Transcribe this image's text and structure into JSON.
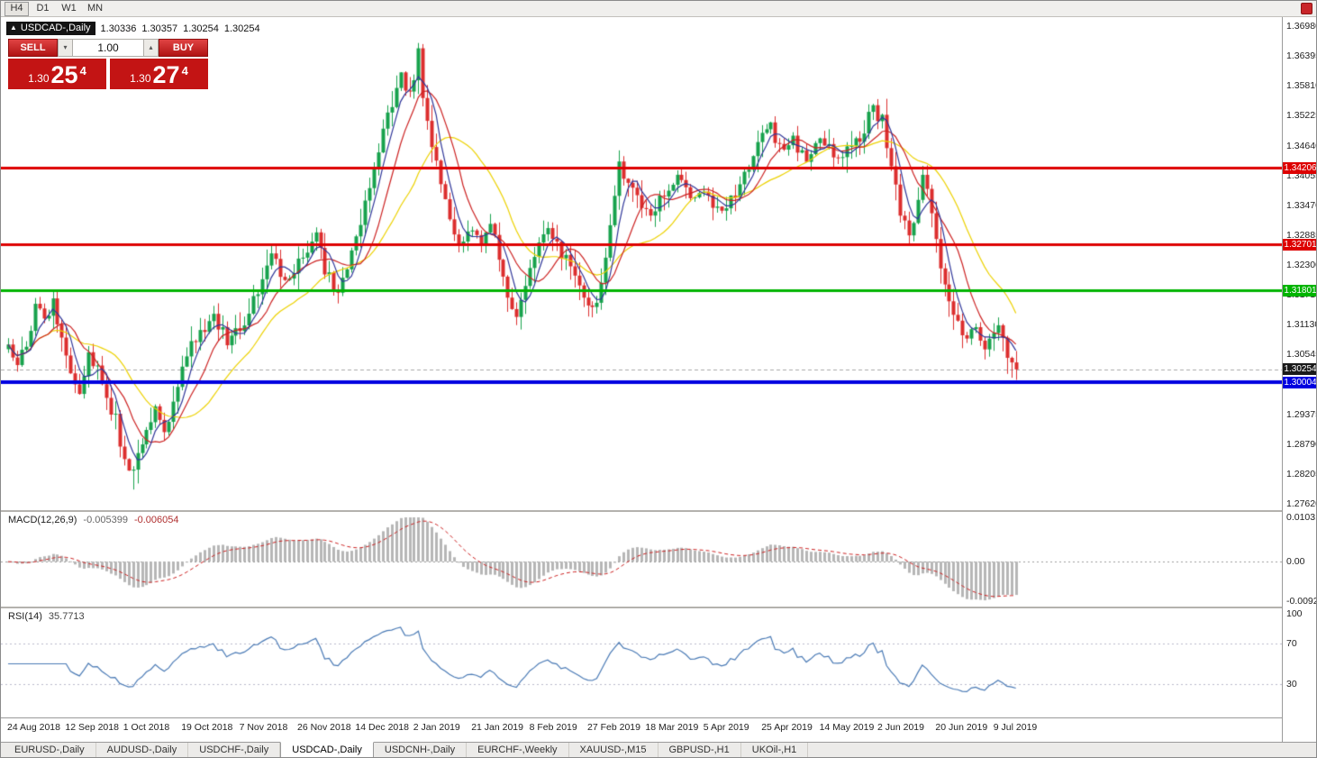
{
  "toolbar": {
    "timeframes": [
      {
        "label": "H4",
        "active": true
      },
      {
        "label": "D1",
        "active": false
      },
      {
        "label": "W1",
        "active": false
      },
      {
        "label": "MN",
        "active": false
      }
    ]
  },
  "chart_header": {
    "marker": "▲",
    "symbol": "USDCAD-,Daily",
    "open": "1.30336",
    "high": "1.30357",
    "low": "1.30254",
    "close": "1.30254"
  },
  "trade_panel": {
    "sell_label": "SELL",
    "buy_label": "BUY",
    "volume": "1.00",
    "spin_down_icon": "▾",
    "spin_up_icon": "▴",
    "sell_price": {
      "small": "1.30",
      "big": "25",
      "sup": "4"
    },
    "buy_price": {
      "small": "1.30",
      "big": "27",
      "sup": "4"
    }
  },
  "price_scale": {
    "ticks": [
      "1.36980",
      "1.36395",
      "1.35810",
      "1.35225",
      "1.34640",
      "1.34055",
      "1.33470",
      "1.32885",
      "1.32300",
      "1.31715",
      "1.31130",
      "1.30545",
      "1.29960",
      "1.29375",
      "1.28790",
      "1.28205",
      "1.27620"
    ],
    "top_price": 1.3698,
    "bottom_price": 1.2762
  },
  "price_labels": [
    {
      "text": "1.34206",
      "price": 1.34206,
      "color": "#dd0000"
    },
    {
      "text": "1.32701",
      "price": 1.32701,
      "color": "#dd0000"
    },
    {
      "text": "1.31801",
      "price": 1.31801,
      "color": "#00b400"
    },
    {
      "text": "1.30254",
      "price": 1.30254,
      "color": "#1a1a1a"
    },
    {
      "text": "1.30004",
      "price": 1.30004,
      "color": "#0000e0"
    }
  ],
  "macd_panel": {
    "title": "MACD(12,26,9)",
    "value_main": "-0.005399",
    "value_signal": "-0.006054",
    "scale_ticks": [
      {
        "text": "0.010311",
        "value": 0.010311
      },
      {
        "text": "0.00",
        "value": 0
      },
      {
        "text": "-0.009204",
        "value": -0.009204
      }
    ],
    "max": 0.010311,
    "min": -0.009204
  },
  "rsi_panel": {
    "title": "RSI(14)",
    "value": "35.7713",
    "scale_ticks": [
      {
        "text": "100",
        "value": 100
      },
      {
        "text": "70",
        "value": 70
      },
      {
        "text": "30",
        "value": 30
      }
    ],
    "levels": [
      70,
      30
    ],
    "max": 100,
    "min": 0
  },
  "x_axis": {
    "labels": [
      "24 Aug 2018",
      "12 Sep 2018",
      "1 Oct 2018",
      "19 Oct 2018",
      "7 Nov 2018",
      "26 Nov 2018",
      "14 Dec 2018",
      "2 Jan 2019",
      "21 Jan 2019",
      "8 Feb 2019",
      "27 Feb 2019",
      "18 Mar 2019",
      "5 Apr 2019",
      "25 Apr 2019",
      "14 May 2019",
      "2 Jun 2019",
      "20 Jun 2019",
      "9 Jul 2019"
    ]
  },
  "tabs": [
    {
      "label": "EURUSD-,Daily",
      "active": false
    },
    {
      "label": "AUDUSD-,Daily",
      "active": false
    },
    {
      "label": "USDCHF-,Daily",
      "active": false
    },
    {
      "label": "USDCAD-,Daily",
      "active": true
    },
    {
      "label": "USDCNH-,Daily",
      "active": false
    },
    {
      "label": "EURCHF-,Weekly",
      "active": false
    },
    {
      "label": "XAUUSD-,M15",
      "active": false
    },
    {
      "label": "GBPUSD-,H1",
      "active": false
    },
    {
      "label": "UKOil-,H1",
      "active": false
    }
  ],
  "chart_data": {
    "type": "candlestick",
    "symbol": "USDCAD",
    "timeframe": "Daily",
    "candle_count": 227,
    "current_price": 1.30254,
    "last_close": 1.30254,
    "close_anchors": [
      [
        0,
        1.3065
      ],
      [
        2,
        1.304
      ],
      [
        4,
        1.3075
      ],
      [
        6,
        1.315
      ],
      [
        8,
        1.3125
      ],
      [
        10,
        1.3155
      ],
      [
        12,
        1.3075
      ],
      [
        14,
        1.302
      ],
      [
        16,
        1.2985
      ],
      [
        18,
        1.305
      ],
      [
        20,
        1.303
      ],
      [
        22,
        1.296
      ],
      [
        24,
        1.2925
      ],
      [
        26,
        1.2845
      ],
      [
        28,
        1.2815
      ],
      [
        29,
        1.2865
      ],
      [
        31,
        1.291
      ],
      [
        33,
        1.295
      ],
      [
        35,
        1.2905
      ],
      [
        37,
        1.296
      ],
      [
        40,
        1.3055
      ],
      [
        43,
        1.309
      ],
      [
        46,
        1.3135
      ],
      [
        49,
        1.3075
      ],
      [
        51,
        1.31
      ],
      [
        53,
        1.3115
      ],
      [
        56,
        1.3185
      ],
      [
        59,
        1.325
      ],
      [
        62,
        1.3195
      ],
      [
        64,
        1.3225
      ],
      [
        66,
        1.3245
      ],
      [
        69,
        1.329
      ],
      [
        71,
        1.3225
      ],
      [
        74,
        1.317
      ],
      [
        77,
        1.3255
      ],
      [
        79,
        1.332
      ],
      [
        82,
        1.342
      ],
      [
        85,
        1.353
      ],
      [
        88,
        1.36
      ],
      [
        90,
        1.3565
      ],
      [
        92,
        1.3645
      ],
      [
        93,
        1.3545
      ],
      [
        95,
        1.3465
      ],
      [
        97,
        1.338
      ],
      [
        99,
        1.331
      ],
      [
        101,
        1.326
      ],
      [
        104,
        1.33
      ],
      [
        106,
        1.327
      ],
      [
        108,
        1.3305
      ],
      [
        110,
        1.3245
      ],
      [
        112,
        1.3165
      ],
      [
        114,
        1.3135
      ],
      [
        116,
        1.3185
      ],
      [
        118,
        1.3245
      ],
      [
        121,
        1.3305
      ],
      [
        124,
        1.3255
      ],
      [
        127,
        1.3205
      ],
      [
        129,
        1.3165
      ],
      [
        131,
        1.314
      ],
      [
        133,
        1.3185
      ],
      [
        135,
        1.331
      ],
      [
        137,
        1.3425
      ],
      [
        139,
        1.338
      ],
      [
        142,
        1.3345
      ],
      [
        144,
        1.333
      ],
      [
        147,
        1.337
      ],
      [
        150,
        1.34
      ],
      [
        153,
        1.3355
      ],
      [
        156,
        1.338
      ],
      [
        158,
        1.3355
      ],
      [
        160,
        1.3335
      ],
      [
        163,
        1.3375
      ],
      [
        166,
        1.342
      ],
      [
        169,
        1.349
      ],
      [
        171,
        1.3505
      ],
      [
        173,
        1.3455
      ],
      [
        176,
        1.3475
      ],
      [
        179,
        1.3435
      ],
      [
        182,
        1.3475
      ],
      [
        184,
        1.3455
      ],
      [
        186,
        1.3435
      ],
      [
        189,
        1.3465
      ],
      [
        192,
        1.3495
      ],
      [
        194,
        1.354
      ],
      [
        196,
        1.351
      ],
      [
        198,
        1.343
      ],
      [
        200,
        1.334
      ],
      [
        202,
        1.328
      ],
      [
        204,
        1.337
      ],
      [
        205,
        1.34
      ],
      [
        207,
        1.334
      ],
      [
        209,
        1.321
      ],
      [
        211,
        1.3155
      ],
      [
        213,
        1.312
      ],
      [
        215,
        1.309
      ],
      [
        217,
        1.3105
      ],
      [
        219,
        1.3065
      ],
      [
        221,
        1.309
      ],
      [
        222,
        1.312
      ],
      [
        224,
        1.306
      ],
      [
        225,
        1.3045
      ],
      [
        226,
        1.30254
      ]
    ],
    "extremes": {
      "high_index": 92,
      "high": 1.3665,
      "low_index": 28,
      "low": 1.279
    },
    "hlines": [
      {
        "price": 1.34206,
        "color": "#dd0000",
        "width": 3
      },
      {
        "price": 1.32701,
        "color": "#dd0000",
        "width": 3
      },
      {
        "price": 1.31801,
        "color": "#00b400",
        "width": 3
      },
      {
        "price": 1.30004,
        "color": "#0000e0",
        "width": 4
      }
    ],
    "ma_lines": [
      {
        "period": 21,
        "color": "#ecd100"
      },
      {
        "period": 10,
        "color": "#cc2222"
      },
      {
        "period": 5,
        "color": "#2f3699"
      }
    ],
    "colors": {
      "up": "#17a24c",
      "down": "#dc2e2e",
      "macd_hist": "#b6b6b6",
      "macd_signal": "#cc2222",
      "rsi_line": "#4a7ab5",
      "current_price_line": "#a8a8a8"
    }
  }
}
